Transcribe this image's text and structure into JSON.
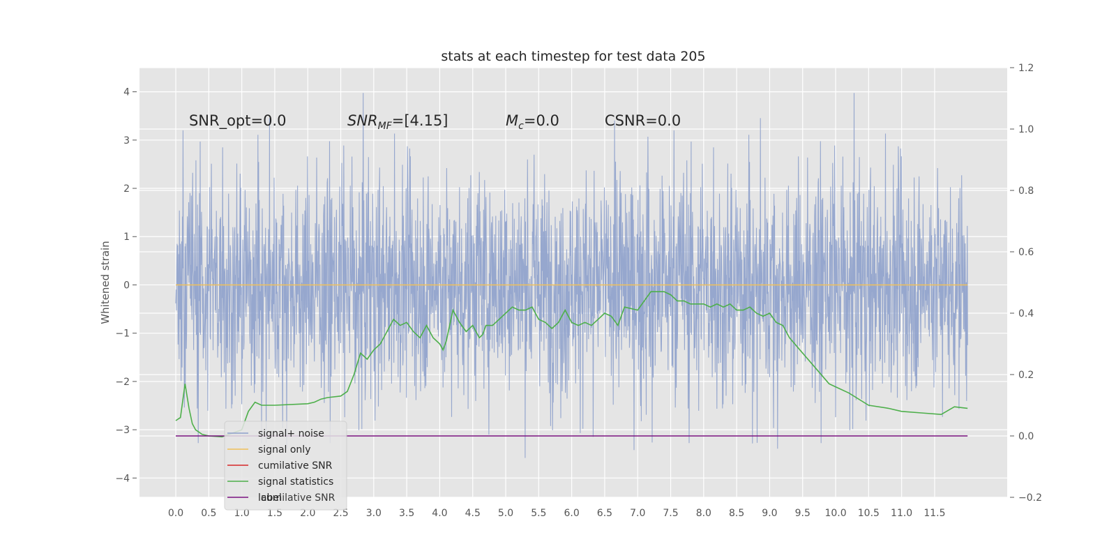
{
  "chart_data": {
    "type": "line",
    "title": "stats at each timestep for test data 205",
    "ylabel": "Whitened strain",
    "y2label": "",
    "xlim": [
      -0.55,
      12.6
    ],
    "ylim": [
      -4.4,
      4.5
    ],
    "y2lim": [
      -0.2,
      1.2
    ],
    "grid": true,
    "legend_position": "lower-left",
    "x_ticks": [
      0.0,
      0.5,
      1.0,
      1.5,
      2.0,
      2.5,
      3.0,
      3.5,
      4.0,
      4.5,
      5.0,
      5.5,
      6.0,
      6.5,
      7.0,
      7.5,
      8.0,
      8.5,
      9.0,
      9.5,
      10.0,
      10.5,
      11.0,
      11.5
    ],
    "x_tick_labels": [
      "0.0",
      "0.5",
      "1.0",
      "1.5",
      "2.0",
      "2.5",
      "3.0",
      "3.5",
      "4.0",
      "4.5",
      "5.0",
      "5.5",
      "6.0",
      "6.5",
      "7.0",
      "7.5",
      "8.0",
      "8.5",
      "9.0",
      "9.5",
      "10.0",
      "10.5",
      "11.0",
      "11.5"
    ],
    "y_ticks": [
      -4,
      -3,
      -2,
      -1,
      0,
      1,
      2,
      3,
      4
    ],
    "y_tick_labels": [
      "−4",
      "−3",
      "−2",
      "−1",
      "0",
      "1",
      "2",
      "3",
      "4"
    ],
    "y2_ticks": [
      -0.2,
      0.0,
      0.2,
      0.4,
      0.6,
      0.8,
      1.0,
      1.2
    ],
    "y2_tick_labels": [
      "−0.2",
      "0.0",
      "0.2",
      "0.4",
      "0.6",
      "0.8",
      "1.0",
      "1.2"
    ],
    "annotations": [
      {
        "text": "SNR_opt=0.0",
        "x": 0.2,
        "y": 3.3
      },
      {
        "text": "SNR_MF=[4.15]",
        "x": 2.6,
        "y": 3.3
      },
      {
        "text": "M_c=0.0",
        "x": 5.0,
        "y": 3.3
      },
      {
        "text": "CSNR=0.0",
        "x": 6.5,
        "y": 3.3
      }
    ],
    "noise": {
      "x_start": 0.0,
      "x_end": 12.0,
      "typical_band": [
        -1.8,
        1.9
      ],
      "max": 4.1,
      "min": -3.95
    },
    "series": [
      {
        "name": "signal+ noise",
        "axis": "left",
        "color": "#8da0cb",
        "style": "noise-trace"
      },
      {
        "name": "signal only",
        "axis": "left",
        "color": "#f0c05a",
        "x": [
          0.0,
          12.0
        ],
        "values": [
          0.0,
          0.0
        ]
      },
      {
        "name": "cumilative SNR",
        "axis": "left",
        "color": "#d62728",
        "x": [],
        "values": []
      },
      {
        "name": "signal statistics",
        "axis": "right",
        "color": "#4daf4a",
        "x": [
          0.0,
          0.07,
          0.14,
          0.2,
          0.25,
          0.3,
          0.4,
          0.5,
          0.7,
          1.0,
          1.1,
          1.2,
          1.3,
          1.5,
          2.0,
          2.1,
          2.2,
          2.3,
          2.5,
          2.6,
          2.7,
          2.8,
          2.9,
          3.0,
          3.1,
          3.2,
          3.3,
          3.4,
          3.5,
          3.6,
          3.7,
          3.8,
          3.9,
          4.0,
          4.05,
          4.1,
          4.2,
          4.3,
          4.4,
          4.5,
          4.6,
          4.65,
          4.7,
          4.8,
          4.9,
          5.0,
          5.1,
          5.2,
          5.3,
          5.4,
          5.5,
          5.6,
          5.7,
          5.8,
          5.9,
          6.0,
          6.1,
          6.2,
          6.3,
          6.4,
          6.5,
          6.6,
          6.7,
          6.8,
          7.0,
          7.1,
          7.2,
          7.3,
          7.4,
          7.5,
          7.6,
          7.7,
          7.8,
          7.9,
          8.0,
          8.1,
          8.2,
          8.3,
          8.4,
          8.5,
          8.6,
          8.7,
          8.8,
          8.9,
          9.0,
          9.1,
          9.2,
          9.3,
          9.5,
          9.7,
          9.9,
          10.0,
          10.2,
          10.5,
          10.8,
          11.0,
          11.3,
          11.6,
          11.8,
          12.0
        ],
        "values": [
          0.05,
          0.06,
          0.17,
          0.09,
          0.04,
          0.02,
          0.005,
          0.0,
          -0.003,
          0.02,
          0.08,
          0.11,
          0.1,
          0.1,
          0.105,
          0.11,
          0.12,
          0.125,
          0.13,
          0.145,
          0.2,
          0.27,
          0.25,
          0.28,
          0.3,
          0.34,
          0.38,
          0.36,
          0.37,
          0.34,
          0.32,
          0.36,
          0.32,
          0.3,
          0.28,
          0.31,
          0.41,
          0.37,
          0.34,
          0.36,
          0.32,
          0.33,
          0.36,
          0.36,
          0.38,
          0.4,
          0.42,
          0.41,
          0.41,
          0.42,
          0.38,
          0.37,
          0.35,
          0.37,
          0.41,
          0.37,
          0.36,
          0.37,
          0.36,
          0.38,
          0.4,
          0.39,
          0.36,
          0.42,
          0.41,
          0.44,
          0.47,
          0.47,
          0.47,
          0.46,
          0.44,
          0.44,
          0.43,
          0.43,
          0.43,
          0.42,
          0.43,
          0.42,
          0.43,
          0.41,
          0.41,
          0.42,
          0.4,
          0.39,
          0.4,
          0.37,
          0.36,
          0.32,
          0.27,
          0.22,
          0.17,
          0.16,
          0.14,
          0.1,
          0.09,
          0.08,
          0.075,
          0.07,
          0.095,
          0.09
        ]
      },
      {
        "name": "label",
        "axis": "right",
        "color": "#7b1280",
        "x": [
          0.0,
          12.0
        ],
        "values": [
          0.0,
          0.0
        ]
      }
    ],
    "legend_entries": [
      {
        "label": "signal+ noise",
        "color": "#8da0cb"
      },
      {
        "label": "signal only",
        "color": "#f0c05a"
      },
      {
        "label": "cumilative SNR",
        "color": "#d62728"
      },
      {
        "label": "signal statistics",
        "color": "#4daf4a"
      },
      {
        "label": "label",
        "color": "#7b1280"
      }
    ],
    "legend_overlap_text": "cumilative SNR"
  }
}
